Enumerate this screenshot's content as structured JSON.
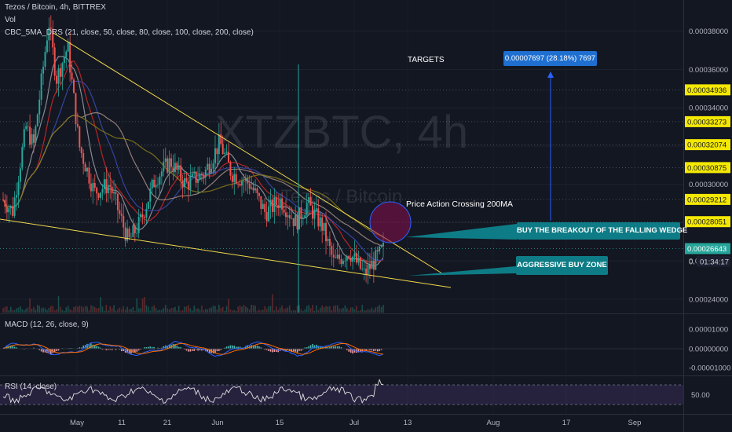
{
  "header": {
    "symbol_line": "Tezos / Bitcoin, 4h, BITTREX",
    "vol_label": "Vol",
    "ma_label": "CBC_5MA_DRS (21, close, 50, close, 80, close, 100, close, 200, close)"
  },
  "watermark": {
    "main": "XTZBTC, 4h",
    "sub": "Tezos / Bitcoin"
  },
  "annotations": {
    "targets": "TARGETS",
    "target_box": "0.00007697 (28.18%) 7697",
    "price_action": "Price Action Crossing 200MA",
    "buy_breakout": "BUY THE BREAKOUT OF THE FALLING WEDGE",
    "aggressive": "AGGRESSIVE BUY ZONE"
  },
  "macd_label": "MACD (12, 26, close, 9)",
  "rsi_label": "RSI (14, close)",
  "colors": {
    "background": "#131722",
    "up": "#26a69a",
    "down": "#ef5350",
    "wedge": "#f0d84a",
    "target_tag": "#f4e800",
    "callout": "#0e7c86",
    "target_box": "#1e6fd0",
    "current_price": "#26a69a"
  },
  "price_axis": {
    "labels": [
      "0.00038000",
      "0.00036000",
      "0.00034000",
      "0.00032000",
      "0.00030000",
      "0.00028000",
      "0.00026000",
      "0.00024000"
    ],
    "target_tags": [
      "0.00034936",
      "0.00033273",
      "0.00032074",
      "0.00030875",
      "0.00029212",
      "0.00028051"
    ],
    "current_price": "0.00026643",
    "countdown": "01:34:17",
    "countdown_prefix": "0."
  },
  "macd_axis": [
    "0.00001000",
    "0.00000000",
    "-0.00001000"
  ],
  "rsi_axis": [
    "50.00"
  ],
  "time_axis": [
    "May",
    "11",
    "21",
    "Jun",
    "15",
    "Jul",
    "13",
    "Aug",
    "17",
    "Sep"
  ],
  "chart_data": {
    "type": "candlestick",
    "symbol": "XTZBTC",
    "interval": "4h",
    "exchange": "BITTREX",
    "ylim": [
      0.000233,
      0.000393
    ],
    "x_ticks": [
      "May",
      "11",
      "21",
      "Jun",
      "15",
      "Jul",
      "13",
      "Aug",
      "17",
      "Sep"
    ],
    "y_ticks": [
      0.00038,
      0.00036,
      0.00034,
      0.00032,
      0.0003,
      0.00028,
      0.00026,
      0.00024
    ],
    "current_price": 0.00026643,
    "target_levels": [
      0.00034936,
      0.00033273,
      0.00032074,
      0.00030875,
      0.00029212,
      0.00028051
    ],
    "target_projection": {
      "value": 7.697e-05,
      "percent": 28.18,
      "ticks": 7697
    },
    "price_keypoints": [
      {
        "t": 0,
        "p": 0.000292
      },
      {
        "t": 0.025,
        "p": 0.000286
      },
      {
        "t": 0.06,
        "p": 0.00033
      },
      {
        "t": 0.08,
        "p": 0.00032
      },
      {
        "t": 0.12,
        "p": 0.000385
      },
      {
        "t": 0.14,
        "p": 0.000355
      },
      {
        "t": 0.17,
        "p": 0.000372
      },
      {
        "t": 0.2,
        "p": 0.00032
      },
      {
        "t": 0.24,
        "p": 0.000296
      },
      {
        "t": 0.28,
        "p": 0.0003
      },
      {
        "t": 0.33,
        "p": 0.00027
      },
      {
        "t": 0.36,
        "p": 0.00028
      },
      {
        "t": 0.4,
        "p": 0.000303
      },
      {
        "t": 0.44,
        "p": 0.000312
      },
      {
        "t": 0.48,
        "p": 0.0003
      },
      {
        "t": 0.53,
        "p": 0.000306
      },
      {
        "t": 0.57,
        "p": 0.000322
      },
      {
        "t": 0.6,
        "p": 0.000306
      },
      {
        "t": 0.65,
        "p": 0.0003
      },
      {
        "t": 0.69,
        "p": 0.000285
      },
      {
        "t": 0.73,
        "p": 0.000292
      },
      {
        "t": 0.77,
        "p": 0.00028
      },
      {
        "t": 0.8,
        "p": 0.00029
      },
      {
        "t": 0.84,
        "p": 0.000278
      },
      {
        "t": 0.87,
        "p": 0.000259
      },
      {
        "t": 0.91,
        "p": 0.000265
      },
      {
        "t": 0.95,
        "p": 0.000253
      },
      {
        "t": 1.0,
        "p": 0.000266
      }
    ]
  }
}
